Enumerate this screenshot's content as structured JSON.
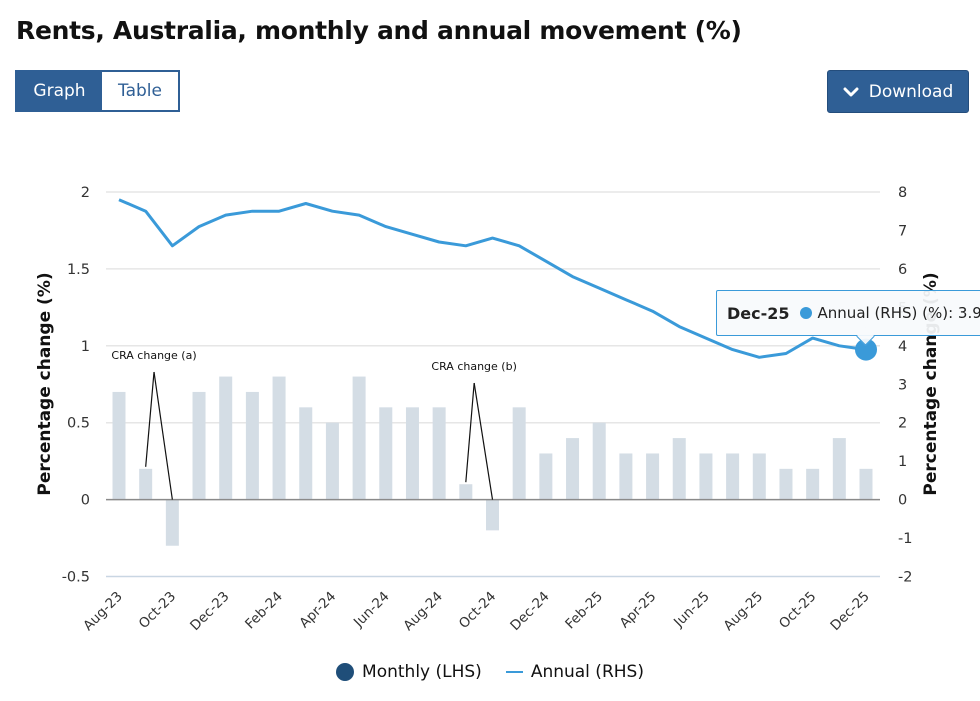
{
  "page": {
    "title": "Rents, Australia, monthly and annual movement (%)"
  },
  "view_toggle": {
    "graph_label": "Graph",
    "table_label": "Table",
    "active": "Graph"
  },
  "download": {
    "label": "Download",
    "icon": "chevron-down-icon"
  },
  "tooltip": {
    "date": "Dec-25",
    "series_label": "Annual (RHS) (%): ",
    "value": "3.9",
    "color": "#3a9ad9"
  },
  "legend": {
    "monthly_label": "Monthly (LHS)",
    "annual_label": "Annual (RHS)"
  },
  "chart_data": {
    "type": "bar+line",
    "title": "Rents, Australia, monthly and annual movement (%)",
    "xlabel": "",
    "ylabel_left": "Percentage change (%)",
    "ylabel_right": "Percentage change (%)",
    "ylim_left": [
      -0.5,
      2
    ],
    "ylim_right": [
      -2,
      8
    ],
    "yticks_left": [
      "-0.5",
      "0",
      "0.5",
      "1",
      "1.5",
      "2"
    ],
    "yticks_left_values": [
      -0.5,
      0,
      0.5,
      1,
      1.5,
      2
    ],
    "yticks_right": [
      "-2",
      "-1",
      "0",
      "1",
      "2",
      "3",
      "4",
      "5",
      "6",
      "7",
      "8"
    ],
    "yticks_right_values": [
      -2,
      -1,
      0,
      1,
      2,
      3,
      4,
      5,
      6,
      7,
      8
    ],
    "grid": true,
    "legend_position": "bottom-center",
    "categories": [
      "Aug-23",
      "Sep-23",
      "Oct-23",
      "Nov-23",
      "Dec-23",
      "Jan-24",
      "Feb-24",
      "Mar-24",
      "Apr-24",
      "May-24",
      "Jun-24",
      "Jul-24",
      "Aug-24",
      "Sep-24",
      "Oct-24",
      "Nov-24",
      "Dec-24",
      "Jan-25",
      "Feb-25",
      "Mar-25",
      "Apr-25",
      "May-25",
      "Jun-25",
      "Jul-25",
      "Aug-25",
      "Sep-25",
      "Oct-25",
      "Nov-25",
      "Dec-25"
    ],
    "xtick_labels": [
      "Aug-23",
      "Oct-23",
      "Dec-23",
      "Feb-24",
      "Apr-24",
      "Jun-24",
      "Aug-24",
      "Oct-24",
      "Dec-24",
      "Feb-25",
      "Apr-25",
      "Jun-25",
      "Aug-25",
      "Oct-25",
      "Dec-25"
    ],
    "series": [
      {
        "name": "Monthly (LHS)",
        "type": "bar",
        "axis": "left",
        "color": "#d4dde5",
        "legend_color": "#1f4e79",
        "values": [
          0.7,
          0.2,
          -0.3,
          0.7,
          0.8,
          0.7,
          0.8,
          0.6,
          0.5,
          0.8,
          0.6,
          0.6,
          0.6,
          0.1,
          -0.2,
          0.6,
          0.3,
          0.4,
          0.5,
          0.3,
          0.3,
          0.4,
          0.3,
          0.3,
          0.3,
          0.2,
          0.2,
          0.4,
          0.2
        ]
      },
      {
        "name": "Annual (RHS)",
        "type": "line",
        "axis": "right",
        "color": "#3a9ad9",
        "values": [
          7.8,
          7.5,
          6.6,
          7.1,
          7.4,
          7.5,
          7.5,
          7.7,
          7.5,
          7.4,
          7.1,
          6.9,
          6.7,
          6.6,
          6.8,
          6.6,
          6.2,
          5.8,
          5.5,
          5.2,
          4.9,
          4.5,
          4.2,
          3.9,
          3.7,
          3.8,
          4.2,
          4.0,
          3.9
        ]
      }
    ],
    "annotations": [
      {
        "text": "CRA change (a)",
        "points_to": [
          "Sep-23",
          "Oct-23"
        ]
      },
      {
        "text": "CRA change (b)",
        "points_to": [
          "Sep-24",
          "Oct-24"
        ]
      }
    ],
    "highlighted_point": {
      "series": "Annual (RHS)",
      "category": "Dec-25",
      "value": 3.9
    }
  }
}
